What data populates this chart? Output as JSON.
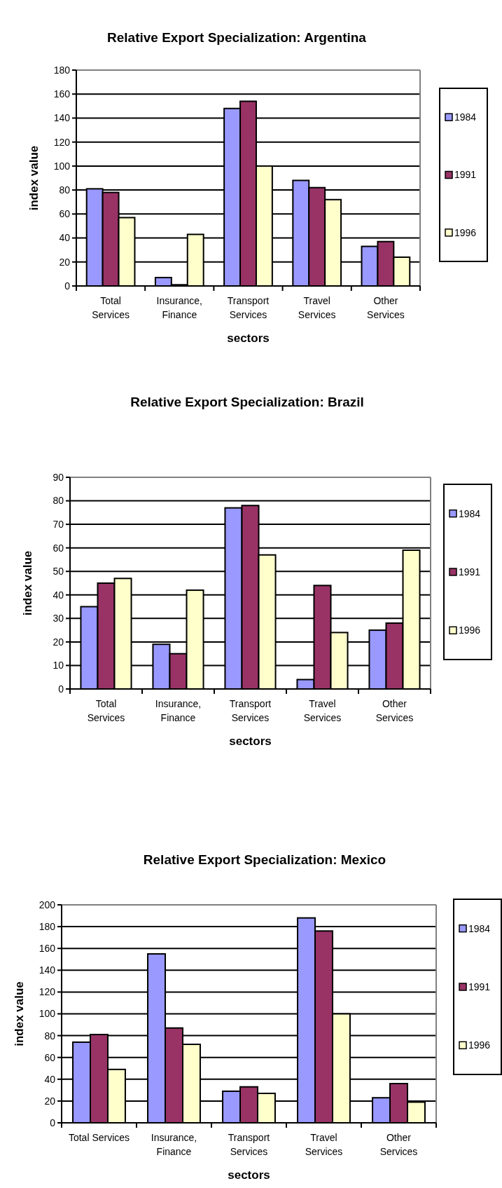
{
  "chart_data": [
    {
      "type": "bar",
      "title": "Relative Export Specialization: Argentina",
      "xlabel": "sectors",
      "ylabel": "index value",
      "categories": [
        "Total\nServices",
        "Insurance,\nFinance",
        "Transport\nServices",
        "Travel\nServices",
        "Other\nServices"
      ],
      "series": [
        {
          "name": "1984",
          "color": "#9999ff",
          "values": [
            81,
            7,
            148,
            88,
            33
          ]
        },
        {
          "name": "1991",
          "color": "#993366",
          "values": [
            78,
            1,
            154,
            82,
            37
          ]
        },
        {
          "name": "1996",
          "color": "#ffffcc",
          "values": [
            57,
            43,
            100,
            72,
            24
          ]
        }
      ],
      "ylim": [
        0,
        180
      ],
      "yticks": [
        0,
        20,
        40,
        60,
        80,
        100,
        120,
        140,
        160,
        180
      ],
      "grid": "y",
      "legend": "right"
    },
    {
      "type": "bar",
      "title": "Relative Export Specialization: Brazil",
      "xlabel": "sectors",
      "ylabel": "index value",
      "categories": [
        "Total\nServices",
        "Insurance,\nFinance",
        "Transport\nServices",
        "Travel\nServices",
        "Other\nServices"
      ],
      "series": [
        {
          "name": "1984",
          "color": "#9999ff",
          "values": [
            35,
            19,
            77,
            4,
            25
          ]
        },
        {
          "name": "1991",
          "color": "#993366",
          "values": [
            45,
            15,
            78,
            44,
            28
          ]
        },
        {
          "name": "1996",
          "color": "#ffffcc",
          "values": [
            47,
            42,
            57,
            24,
            59
          ]
        }
      ],
      "ylim": [
        0,
        90
      ],
      "yticks": [
        0,
        10,
        20,
        30,
        40,
        50,
        60,
        70,
        80,
        90
      ],
      "grid": "y",
      "legend": "right"
    },
    {
      "type": "bar",
      "title": "Relative Export Specialization: Mexico",
      "xlabel": "sectors",
      "ylabel": "index value",
      "categories": [
        "Total Services",
        "Insurance,\nFinance",
        "Transport\nServices",
        "Travel\nServices",
        "Other\nServices"
      ],
      "series": [
        {
          "name": "1984",
          "color": "#9999ff",
          "values": [
            74,
            155,
            29,
            188,
            23
          ]
        },
        {
          "name": "1991",
          "color": "#993366",
          "values": [
            81,
            87,
            33,
            176,
            36
          ]
        },
        {
          "name": "1996",
          "color": "#ffffcc",
          "values": [
            49,
            72,
            27,
            100,
            19
          ]
        }
      ],
      "ylim": [
        0,
        200
      ],
      "yticks": [
        0,
        20,
        40,
        60,
        80,
        100,
        120,
        140,
        160,
        180,
        200
      ],
      "grid": "y",
      "legend": "right"
    }
  ]
}
